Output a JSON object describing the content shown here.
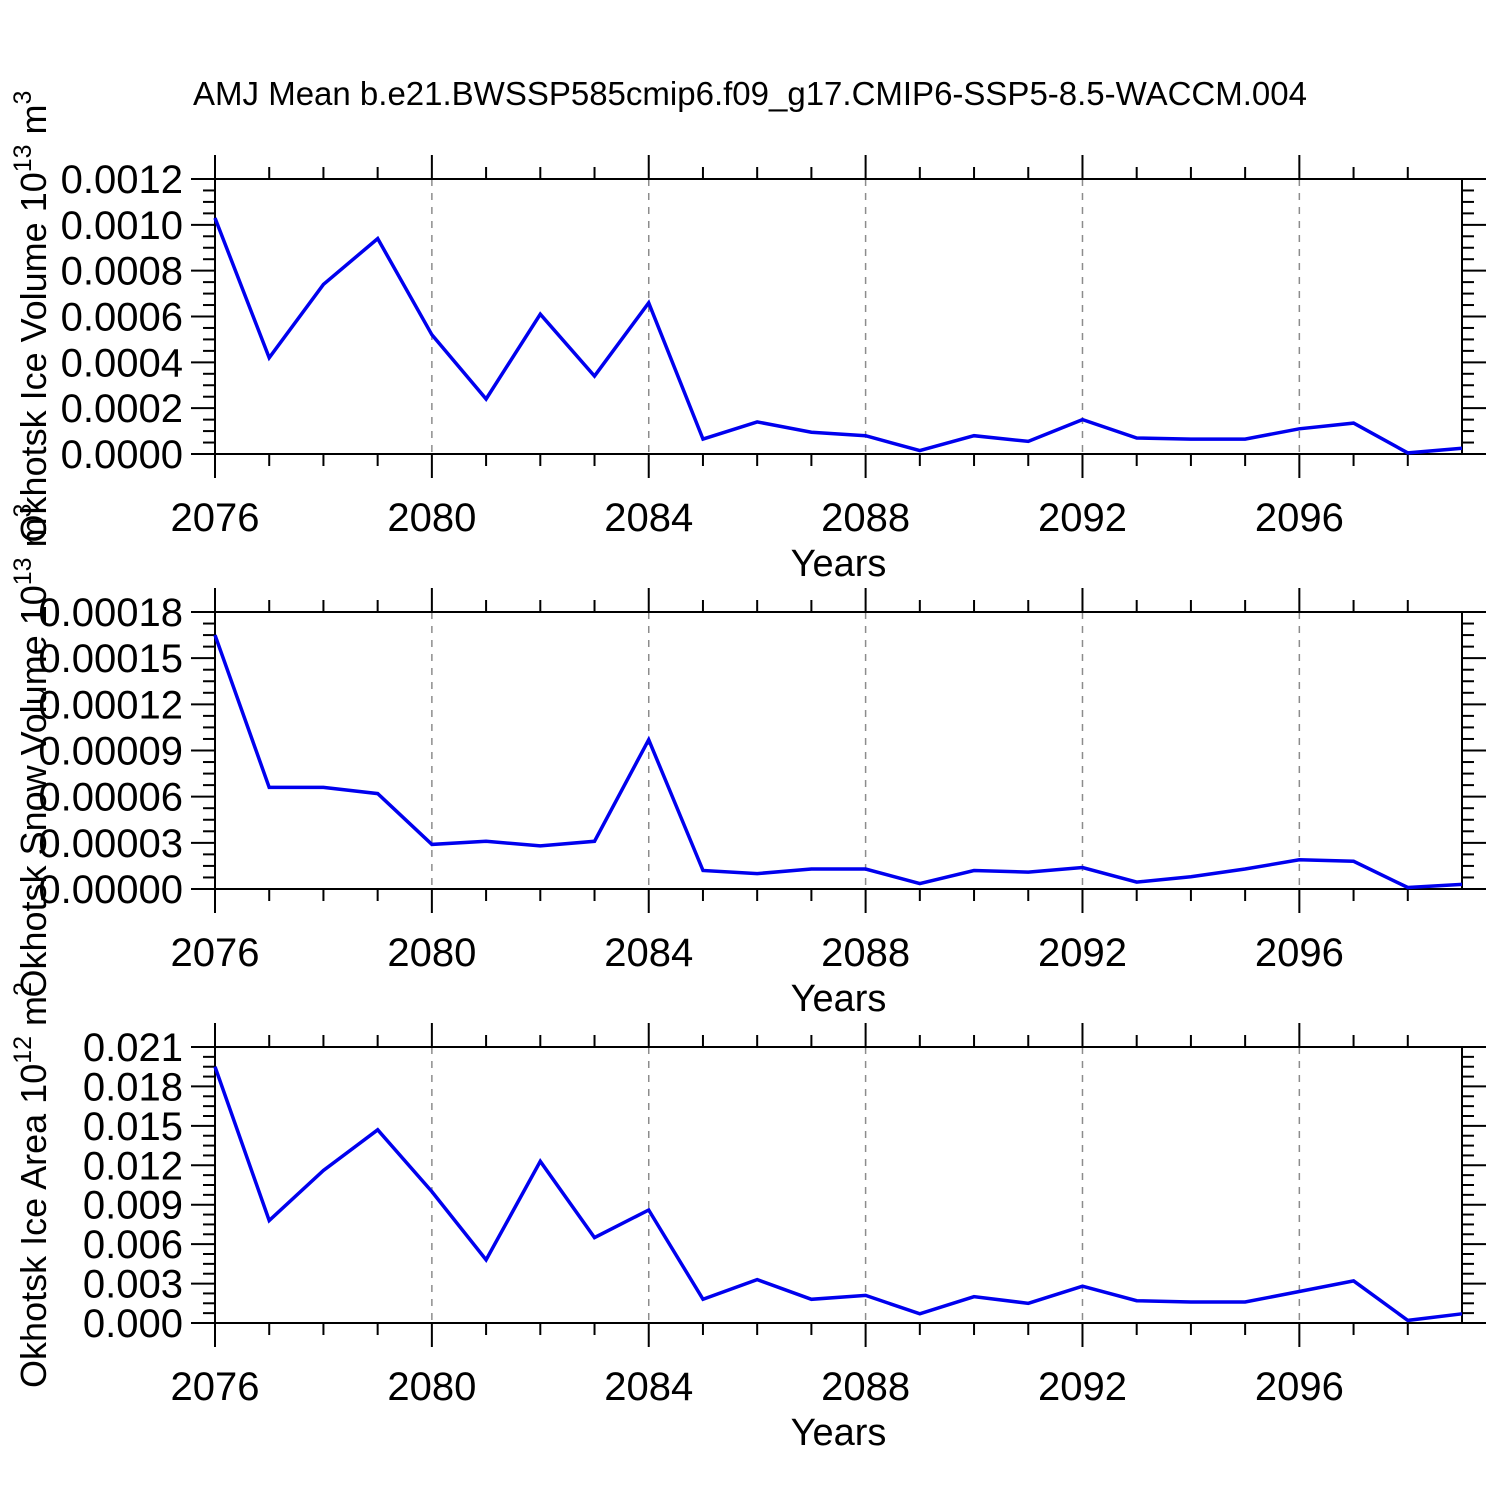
{
  "title": "AMJ Mean b.e21.BWSSP585cmip6.f09_g17.CMIP6-SSP5-8.5-WACCM.004",
  "colors": {
    "line": "#0000ee",
    "axis": "#000000",
    "grid": "#8c8c8c",
    "background": "#ffffff"
  },
  "axis_x": {
    "label": "Years",
    "range": [
      2076,
      2099
    ],
    "major_ticks": [
      2076,
      2080,
      2084,
      2088,
      2092,
      2096
    ],
    "major_tick_labels": [
      "2076",
      "2080",
      "2084",
      "2088",
      "2092",
      "2096"
    ],
    "gridline_years": [
      2080,
      2084,
      2088,
      2092,
      2096
    ],
    "minor_step_years": 1
  },
  "chart_data": [
    {
      "type": "line",
      "name": "okhotsk-ice-volume",
      "ylabel": {
        "prefix": "Okhotsk Ice Volume 10",
        "exponent": "13",
        "unit": " m",
        "unit_exponent": "3"
      },
      "xlabel": "Years",
      "ylim": [
        0,
        0.0012
      ],
      "y_major_step": 0.0002,
      "y_minor_divisions": 4,
      "grid": "vertical-dashed",
      "legend": "none",
      "y_tick_labels": [
        "0.0000",
        "0.0002",
        "0.0004",
        "0.0006",
        "0.0008",
        "0.0010",
        "0.0012"
      ],
      "x": [
        2076,
        2077,
        2078,
        2079,
        2080,
        2081,
        2082,
        2083,
        2084,
        2085,
        2086,
        2087,
        2088,
        2089,
        2090,
        2091,
        2092,
        2093,
        2094,
        2095,
        2096,
        2097,
        2098,
        2099
      ],
      "values": [
        0.00103,
        0.00042,
        0.00074,
        0.00094,
        0.00052,
        0.00024,
        0.00061,
        0.00034,
        0.00066,
        6.5e-05,
        0.00014,
        9.5e-05,
        8e-05,
        1.5e-05,
        8e-05,
        5.5e-05,
        0.00015,
        7e-05,
        6.5e-05,
        6.5e-05,
        0.00011,
        0.000135,
        5e-06,
        2.5e-05
      ]
    },
    {
      "type": "line",
      "name": "okhotsk-snow-volume",
      "ylabel": {
        "prefix": "Okhotsk Snow Volume 10",
        "exponent": "13",
        "unit": " m",
        "unit_exponent": "3"
      },
      "xlabel": "Years",
      "ylim": [
        0,
        0.00018
      ],
      "y_major_step": 3e-05,
      "y_minor_divisions": 4,
      "grid": "vertical-dashed",
      "legend": "none",
      "y_tick_labels": [
        "0.00000",
        "0.00003",
        "0.00006",
        "0.00009",
        "0.00012",
        "0.00015",
        "0.00018"
      ],
      "x": [
        2076,
        2077,
        2078,
        2079,
        2080,
        2081,
        2082,
        2083,
        2084,
        2085,
        2086,
        2087,
        2088,
        2089,
        2090,
        2091,
        2092,
        2093,
        2094,
        2095,
        2096,
        2097,
        2098,
        2099
      ],
      "values": [
        0.000165,
        6.6e-05,
        6.6e-05,
        6.2e-05,
        2.9e-05,
        3.1e-05,
        2.8e-05,
        3.1e-05,
        9.7e-05,
        1.2e-05,
        1e-05,
        1.3e-05,
        1.3e-05,
        3.5e-06,
        1.2e-05,
        1.1e-05,
        1.4e-05,
        4.5e-06,
        8e-06,
        1.3e-05,
        1.9e-05,
        1.8e-05,
        1e-06,
        3e-06
      ]
    },
    {
      "type": "line",
      "name": "okhotsk-ice-area",
      "ylabel": {
        "prefix": "Okhotsk Ice Area 10",
        "exponent": "12",
        "unit": " m",
        "unit_exponent": "2"
      },
      "xlabel": "Years",
      "ylim": [
        0,
        0.021
      ],
      "y_major_step": 0.003,
      "y_minor_divisions": 4,
      "grid": "vertical-dashed",
      "legend": "none",
      "y_tick_labels": [
        "0.000",
        "0.003",
        "0.006",
        "0.009",
        "0.012",
        "0.015",
        "0.018",
        "0.021"
      ],
      "x": [
        2076,
        2077,
        2078,
        2079,
        2080,
        2081,
        2082,
        2083,
        2084,
        2085,
        2086,
        2087,
        2088,
        2089,
        2090,
        2091,
        2092,
        2093,
        2094,
        2095,
        2096,
        2097,
        2098,
        2099
      ],
      "values": [
        0.0195,
        0.0078,
        0.0116,
        0.0147,
        0.01,
        0.0048,
        0.0123,
        0.0065,
        0.0086,
        0.0018,
        0.0033,
        0.0018,
        0.0021,
        0.0007,
        0.002,
        0.0015,
        0.0028,
        0.0017,
        0.0016,
        0.0016,
        0.0024,
        0.0032,
        0.0002,
        0.0007
      ]
    }
  ]
}
